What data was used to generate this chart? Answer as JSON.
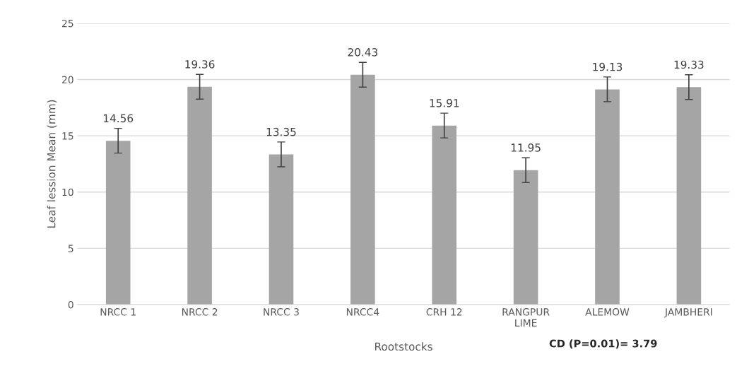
{
  "chart_data": {
    "type": "bar",
    "xlabel": "Rootstocks",
    "ylabel": "Leaf lession Mean (mm)",
    "categories": [
      "NRCC 1",
      "NRCC 2",
      "NRCC 3",
      "NRCC4",
      "CRH 12",
      "RANGPUR\nLIME",
      "ALEMOW",
      "JAMBHERI"
    ],
    "values": [
      14.56,
      19.36,
      13.35,
      20.43,
      15.91,
      11.95,
      19.13,
      19.33
    ],
    "errors": [
      1.1,
      1.1,
      1.1,
      1.1,
      1.1,
      1.1,
      1.1,
      1.1
    ],
    "color": "#a5a5a5",
    "data_labels": true,
    "ylim": [
      0,
      25
    ],
    "yticks": [
      0,
      5,
      10,
      15,
      20,
      25
    ],
    "grid": "y",
    "legend": false,
    "annotations": [
      "CD (P=0.01)= 3.79"
    ]
  }
}
